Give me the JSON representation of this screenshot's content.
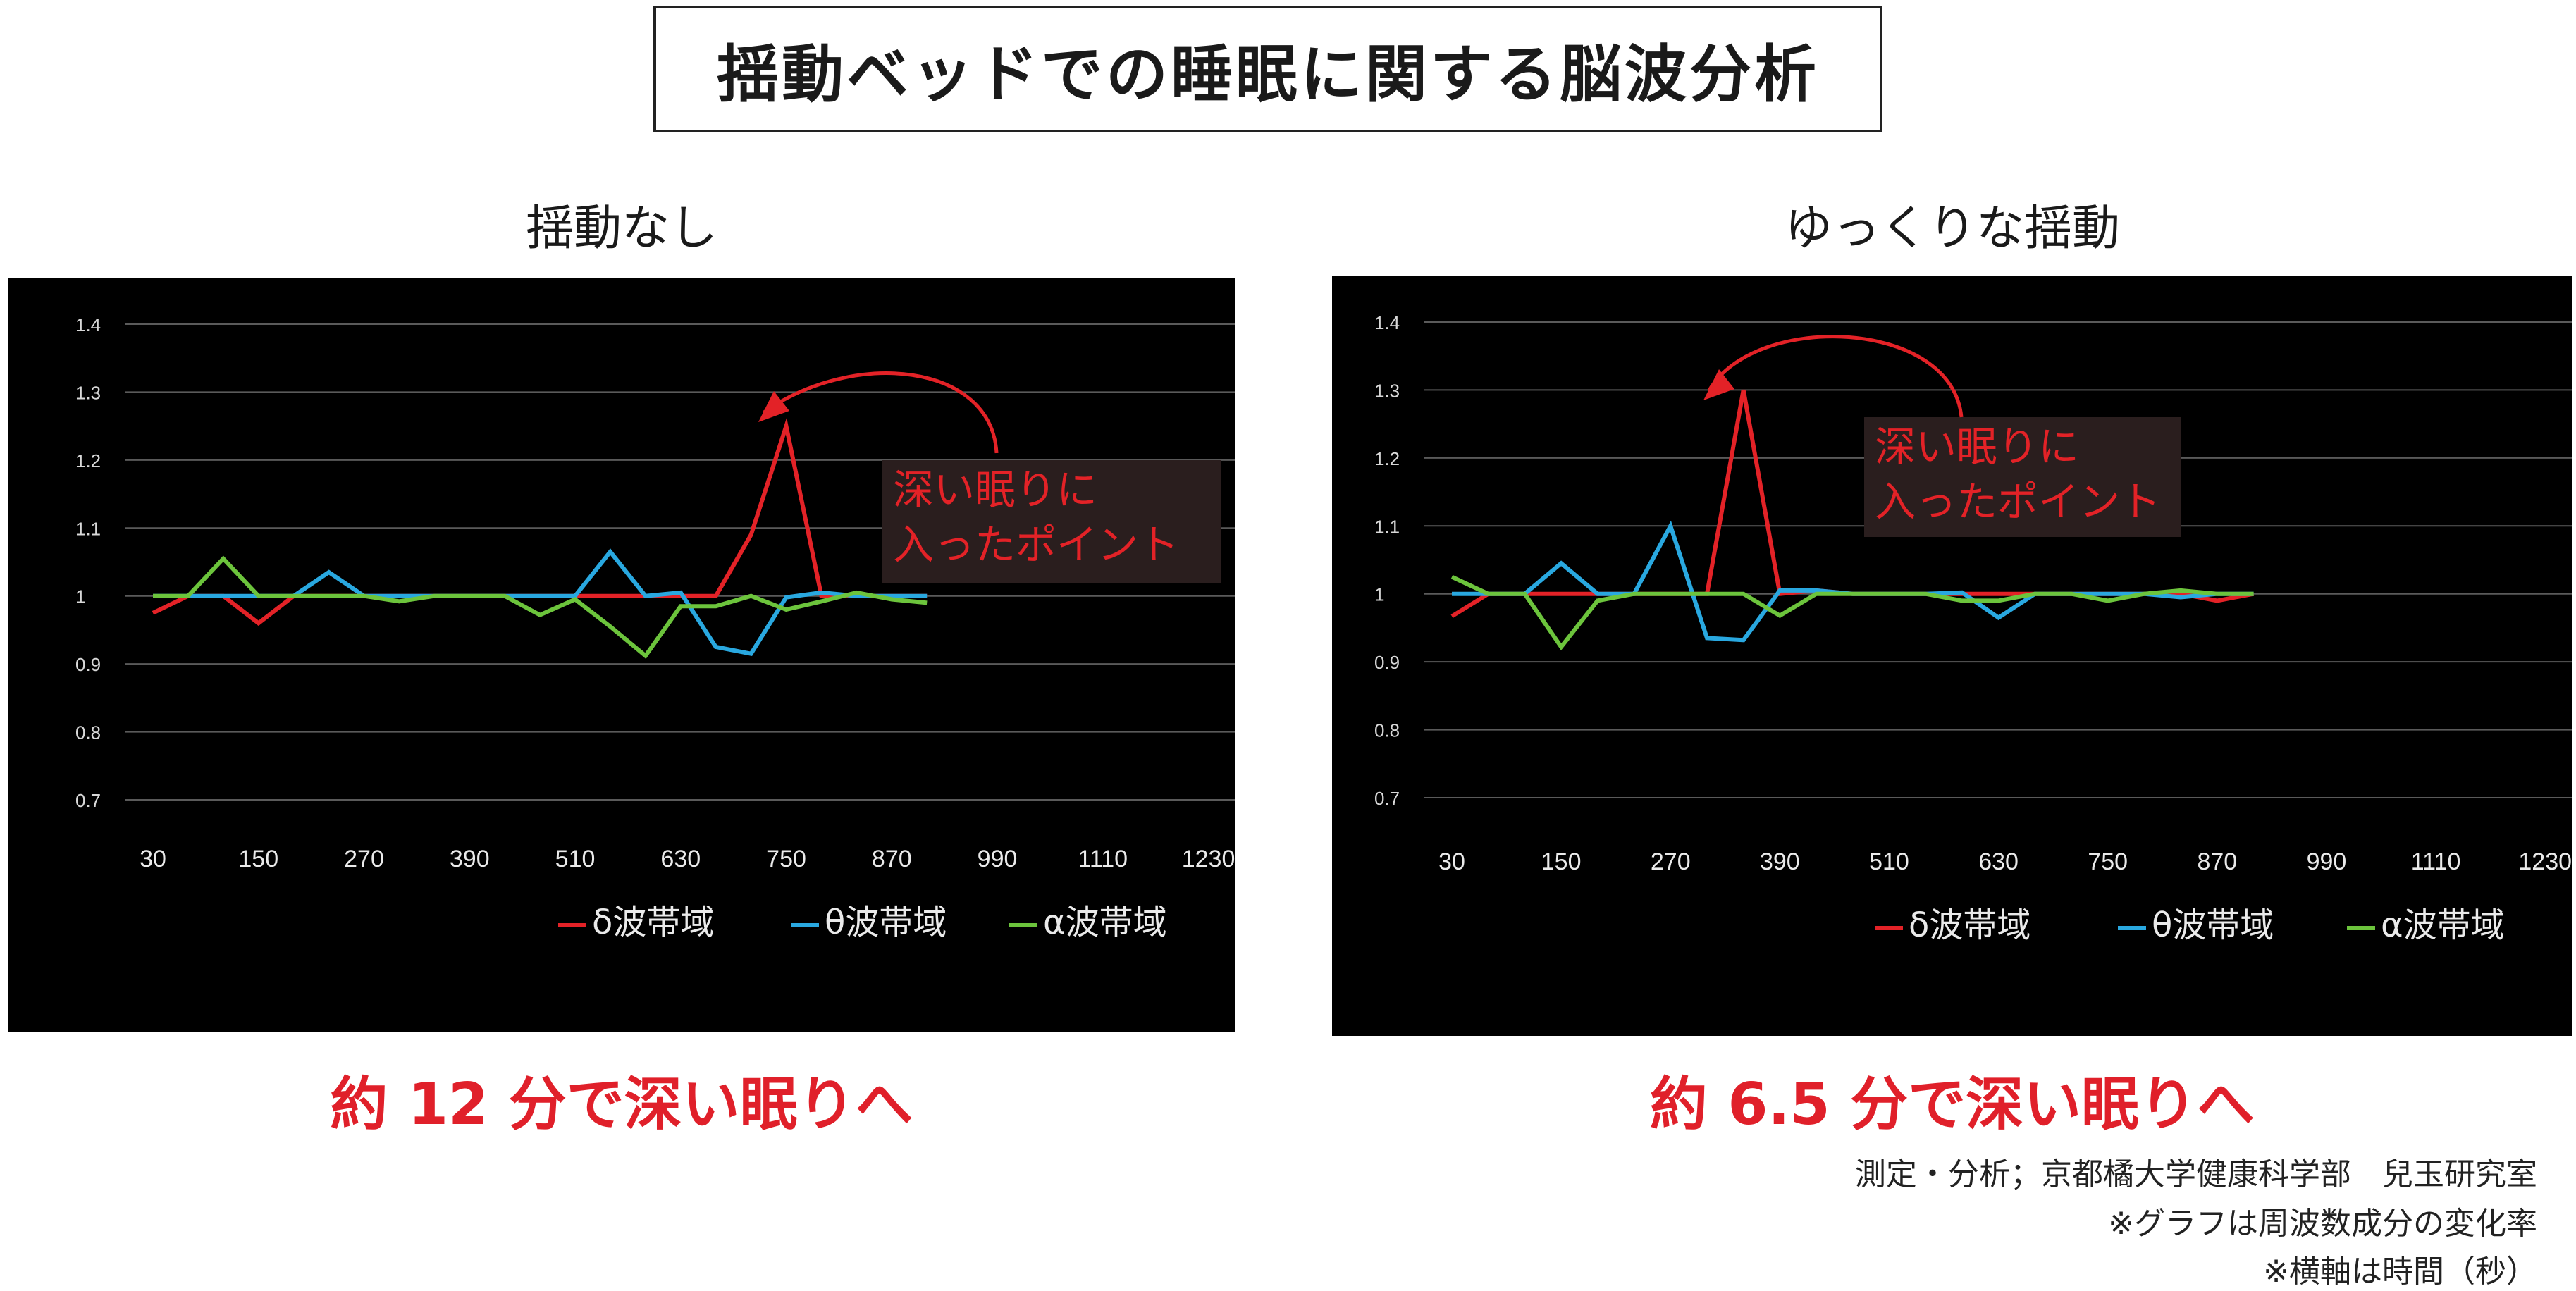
{
  "title": "揺動ベッドでの睡眠に関する脳波分析",
  "colors": {
    "delta": "#e32227",
    "theta": "#29a8e0",
    "alpha": "#6cc43c",
    "annotation": "#e32227",
    "result": "#e0202a"
  },
  "chart_data": [
    {
      "type": "line",
      "title": "揺動なし",
      "x": [
        30,
        70,
        110,
        150,
        190,
        230,
        270,
        310,
        350,
        390,
        430,
        470,
        510,
        550,
        590,
        630,
        670,
        710,
        750,
        790,
        830,
        870,
        910,
        950,
        990,
        1030,
        1070,
        1110,
        1150,
        1190,
        1230
      ],
      "x_ticks": [
        "30",
        "150",
        "270",
        "390",
        "510",
        "630",
        "750",
        "870",
        "990",
        "1110",
        "1230"
      ],
      "y_ticks": [
        "1.4",
        "1.3",
        "1.2",
        "1.1",
        "1",
        "0.9",
        "0.8",
        "0.7"
      ],
      "ylim": [
        0.7,
        1.4
      ],
      "xlim": [
        30,
        1260
      ],
      "series": [
        {
          "name": "δ波帯域",
          "x": [
            30,
            70,
            110,
            150,
            190,
            230,
            270,
            310,
            350,
            390,
            430,
            470,
            510,
            550,
            590,
            630,
            670,
            710,
            750,
            790,
            830,
            870,
            910
          ],
          "values": [
            0.975,
            1.0,
            1.0,
            0.96,
            1.0,
            1.0,
            1.0,
            1.0,
            1.0,
            1.0,
            1.0,
            1.0,
            1.0,
            1.0,
            1.0,
            1.0,
            1.0,
            1.09,
            1.25,
            1.0,
            1.0,
            1.0,
            1.0
          ]
        },
        {
          "name": "θ波帯域",
          "x": [
            30,
            70,
            110,
            150,
            190,
            230,
            270,
            310,
            350,
            390,
            430,
            470,
            510,
            550,
            590,
            630,
            670,
            710,
            750,
            790,
            830,
            870,
            910
          ],
          "values": [
            1.0,
            1.0,
            1.0,
            1.0,
            1.0,
            1.035,
            1.0,
            1.0,
            1.0,
            1.0,
            1.0,
            1.0,
            1.0,
            1.065,
            1.0,
            1.005,
            0.925,
            0.915,
            0.998,
            1.005,
            1.0,
            1.0,
            1.0
          ]
        },
        {
          "name": "α波帯域",
          "x": [
            30,
            70,
            110,
            150,
            190,
            230,
            270,
            310,
            350,
            390,
            430,
            470,
            510,
            550,
            590,
            630,
            670,
            710,
            750,
            790,
            830,
            870,
            910
          ],
          "values": [
            1.0,
            1.0,
            1.055,
            1.0,
            1.0,
            1.0,
            1.0,
            0.992,
            1.0,
            1.0,
            1.0,
            0.972,
            0.995,
            0.955,
            0.912,
            0.985,
            0.985,
            1.0,
            0.98,
            0.992,
            1.005,
            0.995,
            0.99
          ]
        }
      ],
      "callout": [
        "深い眠りに",
        "入ったポイント"
      ],
      "result_text": "約 12 分で深い眠りへ"
    },
    {
      "type": "line",
      "title": "ゆっくりな揺動",
      "x": [
        30,
        70,
        110,
        150,
        190,
        230,
        270,
        310,
        350,
        390,
        430,
        470,
        510,
        550,
        590,
        630,
        670,
        710,
        750,
        790,
        830,
        870,
        910,
        950,
        990,
        1030,
        1070,
        1110,
        1150,
        1190,
        1230
      ],
      "x_ticks": [
        "30",
        "150",
        "270",
        "390",
        "510",
        "630",
        "750",
        "870",
        "990",
        "1110",
        "1230"
      ],
      "y_ticks": [
        "1.4",
        "1.3",
        "1.2",
        "1.1",
        "1",
        "0.9",
        "0.8",
        "0.7"
      ],
      "ylim": [
        0.7,
        1.4
      ],
      "xlim": [
        30,
        1260
      ],
      "series": [
        {
          "name": "δ波帯域",
          "x": [
            30,
            70,
            110,
            150,
            190,
            230,
            270,
            310,
            350,
            390,
            430,
            470,
            510,
            550,
            590,
            630,
            670,
            710,
            750,
            790,
            830,
            870,
            910
          ],
          "values": [
            0.967,
            1.0,
            1.0,
            1.0,
            1.0,
            1.0,
            1.0,
            1.0,
            1.3,
            1.0,
            1.005,
            1.0,
            1.0,
            1.0,
            1.0,
            1.0,
            1.0,
            1.0,
            1.0,
            1.0,
            1.0,
            0.99,
            1.0
          ]
        },
        {
          "name": "θ波帯域",
          "x": [
            30,
            70,
            110,
            150,
            190,
            230,
            270,
            310,
            350,
            390,
            430,
            470,
            510,
            550,
            590,
            630,
            670,
            710,
            750,
            790,
            830,
            870,
            910
          ],
          "values": [
            1.0,
            1.0,
            1.0,
            1.045,
            1.0,
            1.0,
            1.1,
            0.935,
            0.932,
            1.005,
            1.005,
            1.0,
            1.0,
            1.0,
            1.002,
            0.965,
            1.0,
            1.0,
            1.0,
            1.0,
            0.995,
            1.0,
            1.0
          ]
        },
        {
          "name": "α波帯域",
          "x": [
            30,
            70,
            110,
            150,
            190,
            230,
            270,
            310,
            350,
            390,
            430,
            470,
            510,
            550,
            590,
            630,
            670,
            710,
            750,
            790,
            830,
            870,
            910
          ],
          "values": [
            1.025,
            1.0,
            1.0,
            0.922,
            0.99,
            1.0,
            1.0,
            1.0,
            1.0,
            0.968,
            1.0,
            1.0,
            1.0,
            1.0,
            0.99,
            0.99,
            1.0,
            1.0,
            0.99,
            1.0,
            1.005,
            1.0,
            1.0
          ]
        }
      ],
      "callout": [
        "深い眠りに",
        "入ったポイント"
      ],
      "result_text": "約 6.5 分で深い眠りへ"
    }
  ],
  "notes": [
    "測定・分析；京都橘大学健康科学部　兒玉研究室",
    "※グラフは周波数成分の変化率",
    "※横軸は時間（秒）"
  ]
}
